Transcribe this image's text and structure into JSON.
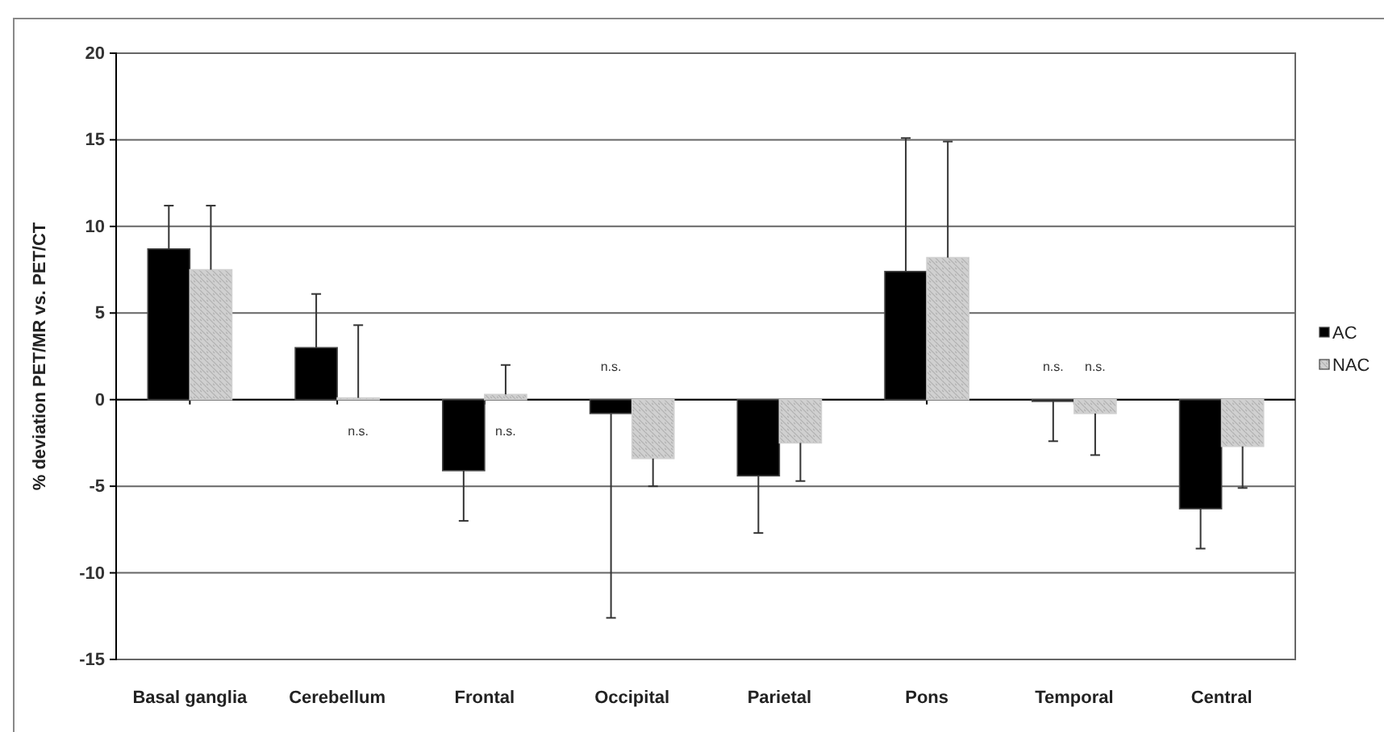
{
  "chart_data": {
    "type": "bar",
    "ylabel": "% deviation PET/MR vs. PET/CT",
    "categories": [
      "Basal ganglia",
      "Cerebellum",
      "Frontal",
      "Occipital",
      "Parietal",
      "Pons",
      "Temporal",
      "Central"
    ],
    "series": [
      {
        "name": "AC",
        "color": "#000000",
        "values": [
          8.7,
          3.0,
          -4.1,
          -0.8,
          -4.4,
          7.4,
          -0.1,
          -6.3
        ],
        "errors": [
          [
            8.7,
            11.2
          ],
          [
            3.0,
            6.1
          ],
          [
            -7.0,
            -4.1
          ],
          [
            -12.6,
            -0.8
          ],
          [
            -7.7,
            -4.4
          ],
          [
            7.4,
            15.1
          ],
          [
            -2.4,
            -0.1
          ],
          [
            -8.6,
            -6.3
          ]
        ]
      },
      {
        "name": "NAC",
        "color": "#d0d0d0",
        "values": [
          7.5,
          0.1,
          0.3,
          -3.4,
          -2.5,
          8.2,
          -0.8,
          -2.7
        ],
        "errors": [
          [
            7.5,
            11.2
          ],
          [
            0.1,
            4.3
          ],
          [
            0.3,
            2.0
          ],
          [
            -5.0,
            -3.4
          ],
          [
            -4.7,
            -2.5
          ],
          [
            8.2,
            14.9
          ],
          [
            -3.2,
            -0.8
          ],
          [
            -5.1,
            -2.7
          ]
        ]
      }
    ],
    "ylim": [
      -15,
      20
    ],
    "yticks": [
      -15,
      -10,
      -5,
      0,
      5,
      10,
      15,
      20
    ],
    "grid": "y",
    "legend": "right",
    "annotations": [
      "n.s.",
      "n.s.",
      "n.s.",
      "n.s.",
      "n.s."
    ]
  }
}
